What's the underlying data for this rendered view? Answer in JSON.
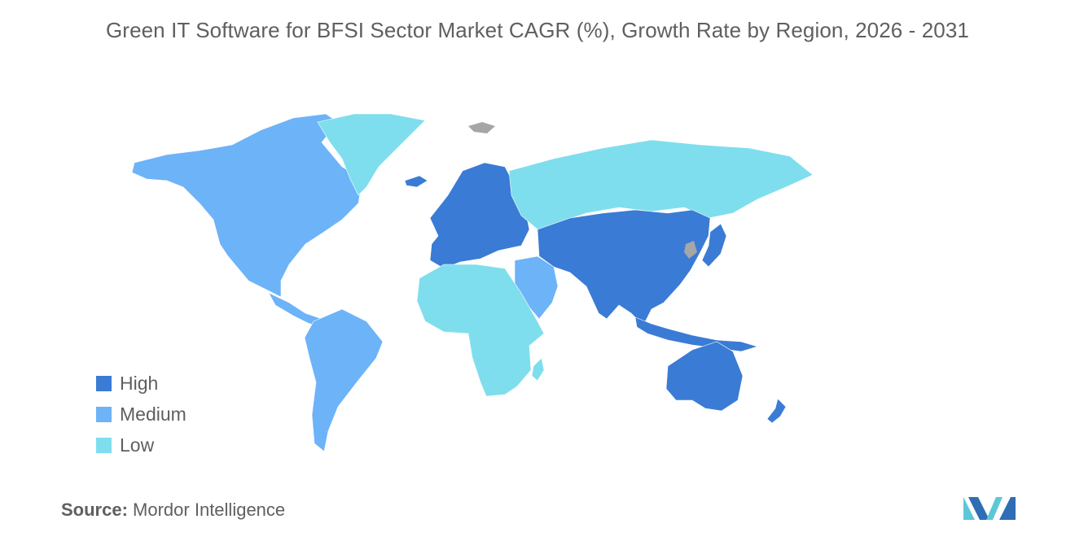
{
  "title": "Green IT Software for BFSI Sector Market CAGR (%), Growth Rate by Region, 2026 - 2031",
  "legend": {
    "items": [
      {
        "label": "High",
        "color": "#3a7bd5"
      },
      {
        "label": "Medium",
        "color": "#6db3f8"
      },
      {
        "label": "Low",
        "color": "#7fdeed"
      }
    ]
  },
  "regions": {
    "north_america": "Medium",
    "south_america": "Medium",
    "greenland": "Low",
    "europe": "High",
    "russia": "Low",
    "middle_east": "Medium",
    "africa": "Low",
    "asia": "High",
    "australia_nz": "High"
  },
  "no_data_color": "#a6a6a6",
  "source": {
    "label": "Source:",
    "value": "Mordor Intelligence"
  }
}
